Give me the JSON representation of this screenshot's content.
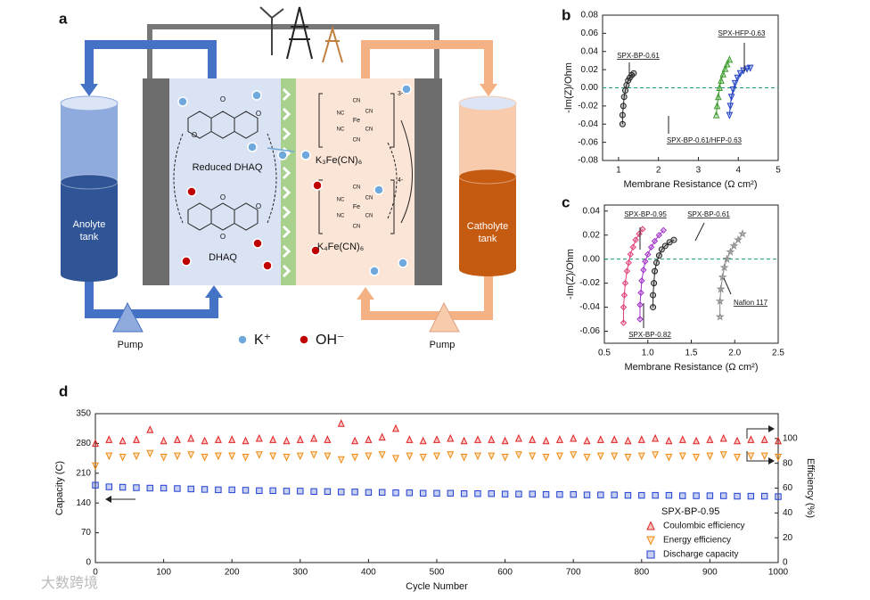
{
  "diagram": {
    "panel_label": "a",
    "anolyte_tank": [
      "Anolyte",
      "tank"
    ],
    "catholyte_tank": [
      "Catholyte",
      "tank"
    ],
    "pumps": [
      "Pump",
      "Pump"
    ],
    "reduced_dhaq": "Reduced DHAQ",
    "dhaq": "DHAQ",
    "k3": "K₃Fe(CN)₆",
    "k4": "K₄Fe(CN)₆",
    "charges": [
      "3-",
      "4-"
    ],
    "ligand": "CN",
    "ligand_left": "NC",
    "metal": "Fe",
    "atom": "O",
    "legend": [
      "K⁺",
      "OH⁻"
    ]
  },
  "watermark": "大数跨境",
  "chart_data": [
    {
      "type": "line",
      "panel_label": "b",
      "xlabel": "Membrane Resistance (Ω cm²)",
      "ylabel": "-Im(Z)/Ohm",
      "xlim": [
        0.6,
        5
      ],
      "xticks": [
        1,
        2,
        3,
        4,
        5
      ],
      "ylim": [
        -0.08,
        0.08
      ],
      "yticks": [
        -0.08,
        -0.06,
        -0.04,
        -0.02,
        {
          "value": 0,
          "label": "0.00"
        },
        0.02,
        0.04,
        0.06,
        0.08
      ],
      "hline": 0,
      "series": [
        {
          "name": "SPX-BP-0.61",
          "color": "#222222",
          "marker": "circle",
          "x": [
            1.1,
            1.1,
            1.12,
            1.14,
            1.17,
            1.2,
            1.24,
            1.28,
            1.33,
            1.38
          ],
          "values": [
            -0.04,
            -0.03,
            -0.02,
            -0.01,
            -0.003,
            0.003,
            0.008,
            0.011,
            0.014,
            0.016
          ]
        },
        {
          "name": "SPX-BP-0.61/HFP-0.63",
          "color": "#3a9a2a",
          "marker": "triangle-up",
          "x": [
            3.45,
            3.47,
            3.5,
            3.53,
            3.57,
            3.62,
            3.67,
            3.72,
            3.78
          ],
          "values": [
            -0.03,
            -0.02,
            -0.01,
            0,
            0.008,
            0.015,
            0.021,
            0.026,
            0.031
          ]
        },
        {
          "name": "SPX-HFP-0.63",
          "color": "#1f3fc4",
          "marker": "triangle-down",
          "x": [
            3.78,
            3.8,
            3.83,
            3.87,
            3.92,
            3.98,
            4.05,
            4.13,
            4.22,
            4.3
          ],
          "values": [
            -0.03,
            -0.02,
            -0.01,
            -0.002,
            0.005,
            0.011,
            0.016,
            0.019,
            0.021,
            0.022
          ]
        }
      ]
    },
    {
      "type": "line",
      "panel_label": "c",
      "xlabel": "Membrane Resistance (Ω cm²)",
      "ylabel": "-Im(Z)/Ohm",
      "xlim": [
        0.5,
        2.5
      ],
      "xticks": [
        0.5,
        {
          "value": 1,
          "label": "1.0"
        },
        1.5,
        {
          "value": 2,
          "label": "2.0"
        },
        2.5
      ],
      "ylim": [
        -0.07,
        0.045
      ],
      "yticks": [
        -0.06,
        -0.04,
        -0.02,
        {
          "value": 0,
          "label": "0.00"
        },
        0.02,
        0.04
      ],
      "hline": 0,
      "series": [
        {
          "name": "SPX-BP-0.95",
          "color": "#e0407a",
          "marker": "diamond",
          "x": [
            0.72,
            0.72,
            0.73,
            0.74,
            0.76,
            0.78,
            0.8,
            0.83,
            0.86,
            0.9,
            0.94
          ],
          "values": [
            -0.053,
            -0.04,
            -0.03,
            -0.02,
            -0.01,
            -0.003,
            0.004,
            0.01,
            0.016,
            0.021,
            0.025
          ]
        },
        {
          "name": "SPX-BP-0.82",
          "color": "#a030c8",
          "marker": "diamond",
          "x": [
            0.91,
            0.91,
            0.92,
            0.93,
            0.95,
            0.97,
            1.0,
            1.04,
            1.08,
            1.13,
            1.18
          ],
          "values": [
            -0.05,
            -0.038,
            -0.028,
            -0.018,
            -0.009,
            -0.002,
            0.004,
            0.01,
            0.015,
            0.02,
            0.024
          ]
        },
        {
          "name": "SPX-BP-0.61",
          "color": "#222222",
          "marker": "circle",
          "x": [
            1.06,
            1.06,
            1.07,
            1.08,
            1.1,
            1.13,
            1.16,
            1.2,
            1.25,
            1.3
          ],
          "values": [
            -0.04,
            -0.03,
            -0.02,
            -0.01,
            -0.003,
            0.003,
            0.008,
            0.011,
            0.014,
            0.016
          ]
        },
        {
          "name": "Nafion 117",
          "color": "#8a8a8a",
          "marker": "star",
          "x": [
            1.83,
            1.83,
            1.84,
            1.86,
            1.88,
            1.91,
            1.95,
            1.99,
            2.04,
            2.09
          ],
          "values": [
            -0.048,
            -0.035,
            -0.025,
            -0.015,
            -0.007,
            0,
            0.006,
            0.011,
            0.016,
            0.021
          ]
        }
      ]
    },
    {
      "type": "scatter",
      "panel_label": "d",
      "xlabel": "Cycle Number",
      "ylabel": "Capacity (C)",
      "y2label": "Efficiency (%)",
      "legend_title": "SPX-BP-0.95",
      "legend": "lower right",
      "xlim": [
        0,
        1000
      ],
      "xticks": [
        0,
        100,
        200,
        300,
        400,
        500,
        600,
        700,
        800,
        900,
        1000
      ],
      "ylim": [
        0,
        350
      ],
      "yticks": [
        0,
        70,
        140,
        210,
        280,
        350
      ],
      "y2lim": [
        0,
        120
      ],
      "y2ticks": [
        0,
        20,
        40,
        60,
        80,
        100
      ],
      "x": [
        0,
        20,
        40,
        60,
        80,
        100,
        120,
        140,
        160,
        180,
        200,
        220,
        240,
        260,
        280,
        300,
        320,
        340,
        360,
        380,
        400,
        420,
        440,
        460,
        480,
        500,
        520,
        540,
        560,
        580,
        600,
        620,
        640,
        660,
        680,
        700,
        720,
        740,
        760,
        780,
        800,
        820,
        840,
        860,
        880,
        900,
        920,
        940,
        960,
        980,
        1000
      ],
      "series": [
        {
          "name": "Coulombic efficiency",
          "color": "#e02020",
          "marker": "triangle-up",
          "axis": "y2",
          "values": [
            96,
            99,
            98,
            99,
            107,
            98,
            99,
            100,
            98,
            99,
            99,
            98,
            100,
            99,
            98,
            99,
            100,
            99,
            112,
            98,
            99,
            101,
            108,
            99,
            98,
            99,
            100,
            98,
            99,
            99,
            98,
            100,
            99,
            98,
            99,
            100,
            98,
            99,
            99,
            98,
            99,
            100,
            98,
            99,
            98,
            99,
            100,
            98,
            99,
            99,
            98
          ]
        },
        {
          "name": "Energy efficiency",
          "color": "#f08a10",
          "marker": "triangle-down",
          "axis": "y2",
          "values": [
            78,
            86,
            85,
            86,
            88,
            85,
            86,
            87,
            85,
            86,
            86,
            85,
            87,
            86,
            85,
            86,
            87,
            86,
            83,
            85,
            86,
            87,
            84,
            86,
            85,
            86,
            87,
            85,
            86,
            86,
            85,
            87,
            86,
            85,
            86,
            87,
            85,
            86,
            86,
            85,
            86,
            87,
            85,
            86,
            85,
            86,
            87,
            85,
            86,
            86,
            85
          ]
        },
        {
          "name": "Discharge capacity",
          "color": "#2040d0",
          "marker": "square",
          "values": [
            182,
            178,
            177,
            176,
            175,
            175,
            174,
            173,
            172,
            171,
            171,
            170,
            169,
            169,
            168,
            168,
            167,
            167,
            166,
            166,
            165,
            165,
            164,
            164,
            163,
            163,
            163,
            162,
            162,
            162,
            161,
            161,
            161,
            160,
            160,
            160,
            159,
            159,
            159,
            158,
            158,
            158,
            158,
            157,
            157,
            157,
            157,
            156,
            156,
            156,
            155
          ]
        }
      ]
    }
  ]
}
